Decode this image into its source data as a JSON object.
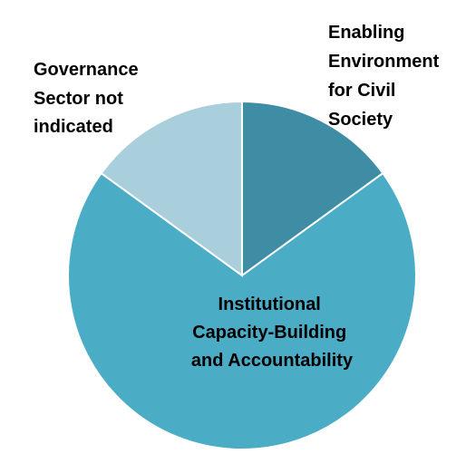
{
  "chart_data": {
    "type": "pie",
    "title": "",
    "start_angle_deg": 0,
    "direction": "clockwise",
    "slices": [
      {
        "label_lines": [
          "Enabling",
          "Environment",
          "for Civil",
          "Society"
        ],
        "value": 15,
        "color": "#3F8DA4"
      },
      {
        "label_lines": [
          "Institutional",
          "Capacity-Building",
          "and Accountability"
        ],
        "value": 70,
        "color": "#4BACC6"
      },
      {
        "label_lines": [
          "Governance",
          "Sector not",
          "indicated"
        ],
        "value": 15,
        "color": "#A9CEDC"
      }
    ],
    "legend": "none",
    "grid": false
  }
}
